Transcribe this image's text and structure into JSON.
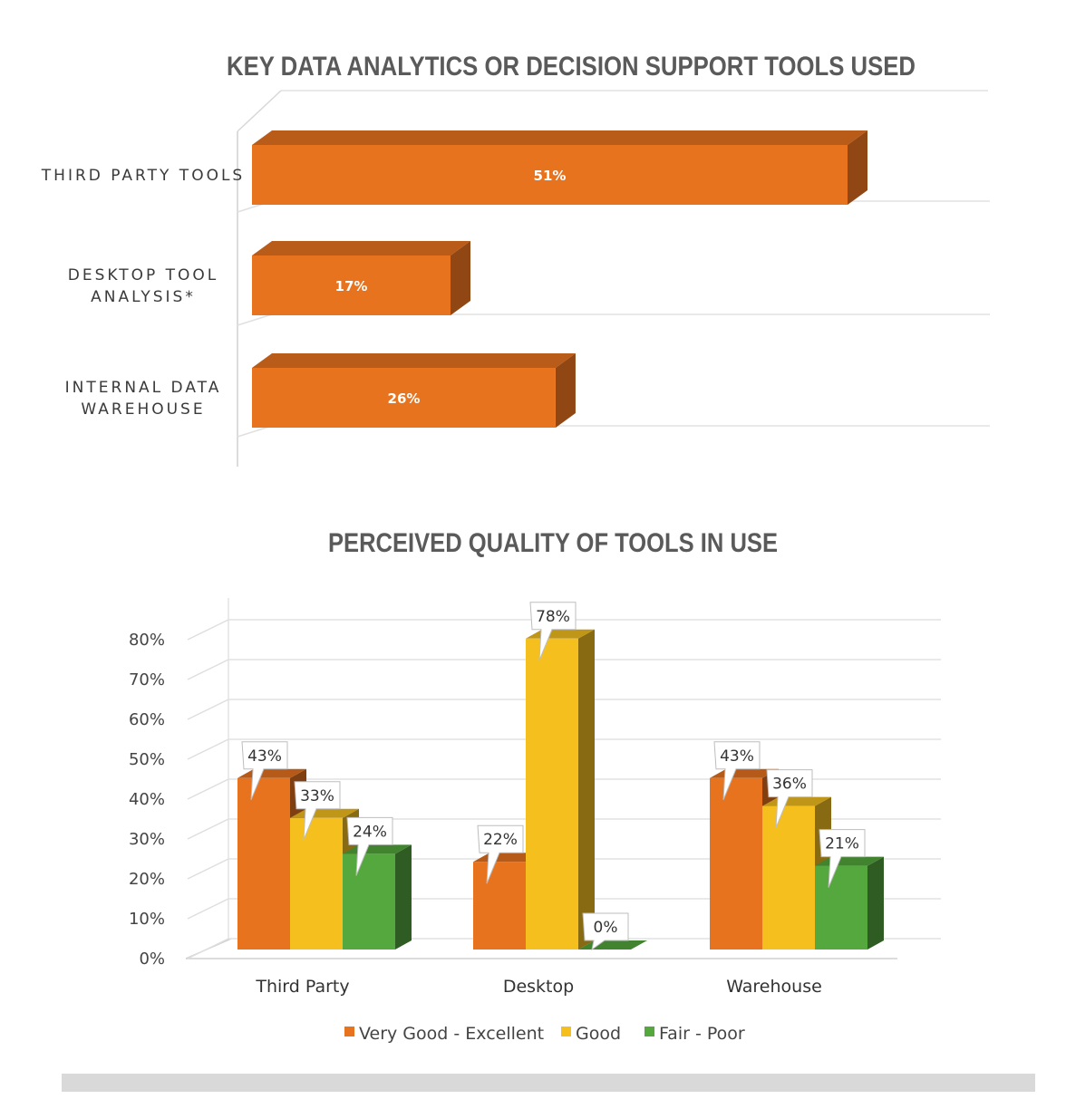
{
  "chart_data": [
    {
      "type": "bar",
      "orientation": "horizontal",
      "style": "3d",
      "title": "KEY DATA ANALYTICS OR DECISION SUPPORT TOOLS USED",
      "categories": [
        "THIRD PARTY TOOLS",
        "DESKTOP TOOL ANALYSIS*",
        "INTERNAL DATA WAREHOUSE"
      ],
      "category_lines": [
        [
          "THIRD PARTY TOOLS"
        ],
        [
          "DESKTOP TOOL",
          "ANALYSIS*"
        ],
        [
          "INTERNAL DATA",
          "WAREHOUSE"
        ]
      ],
      "values": [
        51,
        17,
        26
      ],
      "value_labels": [
        "51%",
        "17%",
        "26%"
      ],
      "xlim": [
        0,
        60
      ],
      "grid": true,
      "legend": "none",
      "color": "#e8731f"
    },
    {
      "type": "bar",
      "orientation": "vertical",
      "style": "3d",
      "title": "PERCEIVED QUALITY OF TOOLS IN USE",
      "categories": [
        "Third Party",
        "Desktop",
        "Warehouse"
      ],
      "series": [
        {
          "name": "Very Good - Excellent",
          "values": [
            43,
            22,
            43
          ],
          "labels": [
            "43%",
            "22%",
            "43%"
          ],
          "color": "#e8731f"
        },
        {
          "name": "Good",
          "values": [
            33,
            78,
            36
          ],
          "labels": [
            "33%",
            "78%",
            "36%"
          ],
          "color": "#f5c01e"
        },
        {
          "name": "Fair - Poor",
          "values": [
            24,
            0,
            21
          ],
          "labels": [
            "24%",
            "0%",
            "21%"
          ],
          "color": "#55a83d"
        }
      ],
      "yticks": [
        "0%",
        "10%",
        "20%",
        "30%",
        "40%",
        "50%",
        "60%",
        "70%",
        "80%"
      ],
      "ylim": [
        0,
        80
      ],
      "grid": true,
      "legend": "bottom"
    }
  ]
}
